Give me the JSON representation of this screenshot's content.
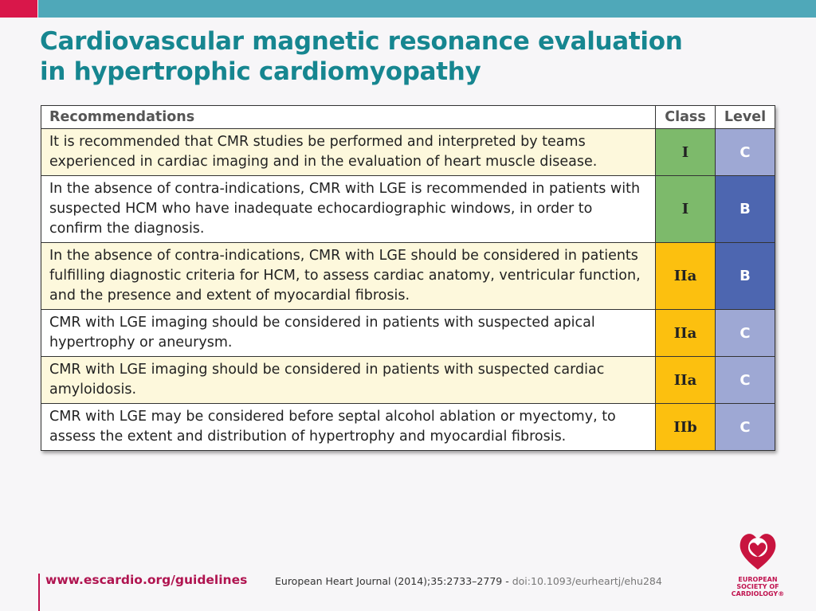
{
  "title_line1": "Cardiovascular magnetic resonance evaluation",
  "title_line2": "in hypertrophic cardiomyopathy",
  "table": {
    "headers": [
      "Recommendations",
      "Class",
      "Level"
    ],
    "rows": [
      {
        "text": "It is recommended that CMR studies be performed and interpreted by teams experienced in cardiac imaging and in the evaluation of heart muscle disease.",
        "class": "I",
        "level": "C"
      },
      {
        "text": "In the absence of contra-indications, CMR with LGE is recommended in patients with suspected HCM who have inadequate echocardiographic windows, in order to confirm the diagnosis.",
        "class": "I",
        "level": "B"
      },
      {
        "text": "In the absence of contra-indications, CMR with LGE should be considered in patients fulfilling diagnostic criteria for HCM, to assess cardiac anatomy, ventricular function, and the presence and extent of myocardial fibrosis.",
        "class": "IIa",
        "level": "B"
      },
      {
        "text": "CMR with LGE imaging should be considered in patients with suspected apical hypertrophy or aneurysm.",
        "class": "IIa",
        "level": "C"
      },
      {
        "text": "CMR with LGE imaging should be considered in patients with suspected cardiac amyloidosis.",
        "class": "IIa",
        "level": "C"
      },
      {
        "text": "CMR with LGE may be considered before septal alcohol ablation or myectomy, to assess the extent and distribution of hypertrophy and myocardial fibrosis.",
        "class": "IIb",
        "level": "C"
      }
    ]
  },
  "colors": {
    "class_I": "#7dba6b",
    "class_II": "#fcc00f",
    "level_C": "#9ea8d4",
    "level_B": "#4d66b0",
    "row_cream": "#fdf8dc"
  },
  "footer": {
    "url": "www.escardio.org/guidelines",
    "journal": "European Heart Journal (2014);35:2733–2779 - ",
    "doi": "doi:10.1093/eurheartj/ehu284"
  },
  "logo": {
    "text": "EUROPEAN SOCIETY OF CARDIOLOGY®"
  }
}
